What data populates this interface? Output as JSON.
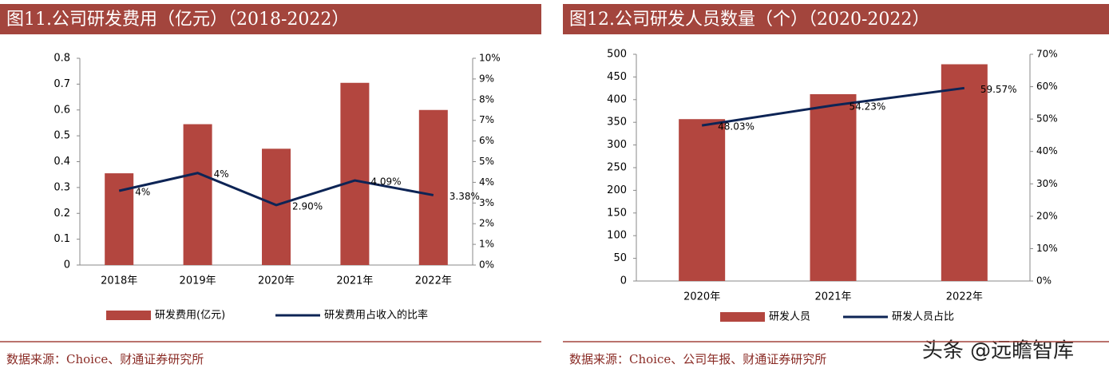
{
  "chart_data": [
    {
      "type": "bar",
      "title": "图11.公司研发费用（亿元）（2018-2022）",
      "categories": [
        "2018年",
        "2019年",
        "2020年",
        "2021年",
        "2022年"
      ],
      "series": [
        {
          "name": "研发费用(亿元)",
          "type": "bar",
          "color": "#b3463f",
          "values": [
            0.355,
            0.545,
            0.45,
            0.705,
            0.6
          ]
        },
        {
          "name": "研发费用占收入的比率",
          "type": "line",
          "axis": "y2",
          "color": "#0d2455",
          "values": [
            3.59,
            4.45,
            2.9,
            4.09,
            3.38
          ],
          "value_labels": [
            "4%",
            "4%",
            "2.90%",
            "4.09%",
            "3.38%"
          ]
        }
      ],
      "ylim": [
        0,
        0.8
      ],
      "yticks": [
        0,
        0.1,
        0.2,
        0.3,
        0.4,
        0.5,
        0.6,
        0.7,
        0.8
      ],
      "y2lim": [
        0,
        10
      ],
      "y2ticks": [
        {
          "value": 0,
          "label": "0%"
        },
        {
          "value": 1,
          "label": "1%"
        },
        {
          "value": 2,
          "label": "2%"
        },
        {
          "value": 3,
          "label": "3%"
        },
        {
          "value": 4,
          "label": "4%"
        },
        {
          "value": 5,
          "label": "5%"
        },
        {
          "value": 6,
          "label": "6%"
        },
        {
          "value": 7,
          "label": "7%"
        },
        {
          "value": 8,
          "label": "8%"
        },
        {
          "value": 9,
          "label": "9%"
        },
        {
          "value": 10,
          "label": "10%"
        }
      ],
      "source": "数据来源：Choice、财通证券研究所"
    },
    {
      "type": "bar",
      "title": "图12.公司研发人员数量（个）（2020-2022）",
      "categories": [
        "2020年",
        "2021年",
        "2022年"
      ],
      "series": [
        {
          "name": "研发人员",
          "type": "bar",
          "color": "#b3463f",
          "values": [
            357,
            412,
            478
          ]
        },
        {
          "name": "研发人员占比",
          "type": "line",
          "axis": "y2",
          "color": "#0d2455",
          "values": [
            48.03,
            54.23,
            59.57
          ],
          "value_labels": [
            "48.03%",
            "54.23%",
            "59.57%"
          ]
        }
      ],
      "ylim": [
        0,
        500
      ],
      "yticks": [
        0,
        50,
        100,
        150,
        200,
        250,
        300,
        350,
        400,
        450,
        500
      ],
      "y2lim": [
        0,
        70
      ],
      "y2ticks": [
        {
          "value": 0,
          "label": "0%"
        },
        {
          "value": 10,
          "label": "10%"
        },
        {
          "value": 20,
          "label": "20%"
        },
        {
          "value": 30,
          "label": "30%"
        },
        {
          "value": 40,
          "label": "40%"
        },
        {
          "value": 50,
          "label": "50%"
        },
        {
          "value": 60,
          "label": "60%"
        },
        {
          "value": 70,
          "label": "70%"
        }
      ],
      "source": "数据来源：Choice、公司年报、财通证券研究所"
    }
  ],
  "watermark": "头条 @远瞻智库"
}
